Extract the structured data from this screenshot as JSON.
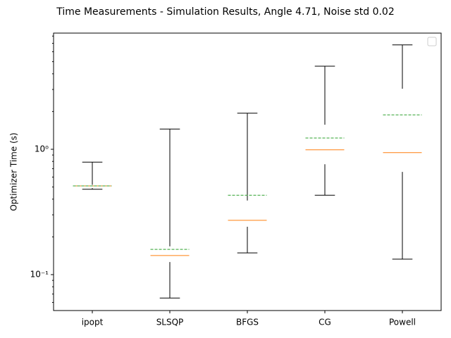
{
  "chart_data": {
    "type": "box",
    "title": "Time Measurements - Simulation Results, Angle 4.71, Noise std 0.02",
    "y_label": "Optimizer Time (s)",
    "y_scale": "log",
    "categories": [
      "ipopt",
      "SLSQP",
      "BFGS",
      "CG",
      "Powell"
    ],
    "boxes": [
      {
        "whislo": 0.48,
        "q1": 0.49,
        "med": 0.51,
        "q3": 0.52,
        "whishi": 0.79,
        "mean": 0.51
      },
      {
        "whislo": 0.065,
        "q1": 0.126,
        "med": 0.142,
        "q3": 0.168,
        "whishi": 1.45,
        "mean": 0.159
      },
      {
        "whislo": 0.149,
        "q1": 0.241,
        "med": 0.271,
        "q3": 0.39,
        "whishi": 1.94,
        "mean": 0.43
      },
      {
        "whislo": 0.43,
        "q1": 0.76,
        "med": 0.99,
        "q3": 1.57,
        "whishi": 4.6,
        "mean": 1.23
      },
      {
        "whislo": 0.133,
        "q1": 0.66,
        "med": 0.94,
        "q3": 3.04,
        "whishi": 6.8,
        "mean": 1.88
      }
    ],
    "median_color": "#ff7f0e",
    "mean_color": "#2ca02c",
    "whisker_color": "#000000",
    "ylim": [
      0.0517,
      8.45
    ],
    "yticks": [
      {
        "value": 0.1,
        "label": "10⁻¹"
      },
      {
        "value": 1,
        "label": "10⁰"
      }
    ],
    "yminorticks": [
      0.06,
      0.07,
      0.08,
      0.09,
      0.2,
      0.3,
      0.4,
      0.5,
      0.6,
      0.7,
      0.8,
      0.9,
      2,
      3,
      4,
      5,
      6,
      7,
      8
    ],
    "grid": false
  }
}
